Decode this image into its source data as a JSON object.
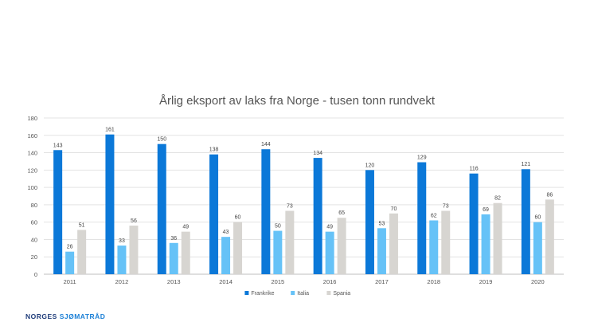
{
  "brand": {
    "name_part1": "NORGES",
    "name_part2": "SJØMATRÅD"
  },
  "chart_data": {
    "type": "bar",
    "title": "Årlig eksport av laks fra Norge - tusen tonn rundvekt",
    "categories": [
      "2011",
      "2012",
      "2013",
      "2014",
      "2015",
      "2016",
      "2017",
      "2018",
      "2019",
      "2020"
    ],
    "series": [
      {
        "name": "Frankrike",
        "color": "#0b78d8",
        "values": [
          143,
          161,
          150,
          138,
          144,
          134,
          120,
          129,
          116,
          121
        ]
      },
      {
        "name": "Italia",
        "color": "#66c2f7",
        "values": [
          26,
          33,
          36,
          43,
          50,
          49,
          53,
          62,
          69,
          60
        ]
      },
      {
        "name": "Spania",
        "color": "#d7d5d1",
        "values": [
          51,
          56,
          49,
          60,
          73,
          65,
          70,
          73,
          82,
          86
        ]
      }
    ],
    "ylim": [
      0,
      180
    ],
    "yticks": [
      0,
      20,
      40,
      60,
      80,
      100,
      120,
      140,
      160,
      180
    ],
    "grid": true,
    "legend": "bottom-center"
  }
}
